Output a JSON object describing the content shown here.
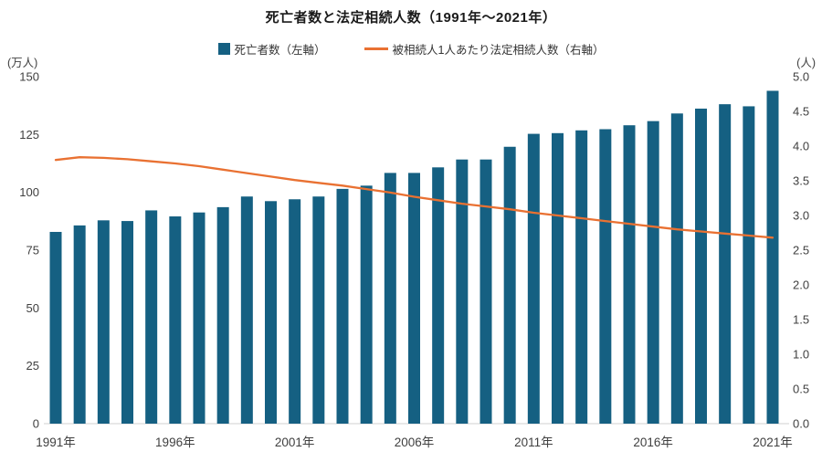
{
  "chart_data": {
    "type": "combo-bar-line",
    "title": "死亡者数と法定相続人数（1991年〜2021年）",
    "unit_left": "(万人)",
    "unit_right": "(人)",
    "years": [
      1991,
      1992,
      1993,
      1994,
      1995,
      1996,
      1997,
      1998,
      1999,
      2000,
      2001,
      2002,
      2003,
      2004,
      2005,
      2006,
      2007,
      2008,
      2009,
      2010,
      2011,
      2012,
      2013,
      2014,
      2015,
      2016,
      2017,
      2018,
      2019,
      2020,
      2021
    ],
    "series": [
      {
        "name": "死亡者数（左軸）",
        "type": "bar",
        "axis": "left",
        "color": "#156082",
        "values": [
          82.9,
          85.7,
          87.9,
          87.6,
          92.2,
          89.6,
          91.3,
          93.6,
          98.2,
          96.2,
          97.0,
          98.2,
          101.5,
          102.9,
          108.4,
          108.4,
          110.8,
          114.2,
          114.2,
          119.7,
          125.3,
          125.6,
          126.8,
          127.3,
          129.0,
          130.8,
          134.1,
          136.2,
          138.1,
          137.2,
          143.9
        ]
      },
      {
        "name": "被相続人1人あたり法定相続人数（右軸）",
        "type": "line",
        "axis": "right",
        "color": "#E97132",
        "values": [
          3.8,
          3.84,
          3.83,
          3.81,
          3.78,
          3.75,
          3.71,
          3.66,
          3.61,
          3.56,
          3.51,
          3.47,
          3.43,
          3.38,
          3.33,
          3.27,
          3.22,
          3.17,
          3.13,
          3.09,
          3.04,
          3.0,
          2.96,
          2.92,
          2.88,
          2.84,
          2.8,
          2.77,
          2.74,
          2.71,
          2.68
        ]
      }
    ],
    "left_axis": {
      "ticks": [
        "0",
        "25",
        "50",
        "75",
        "100",
        "125",
        "150"
      ],
      "min": 0,
      "max": 150
    },
    "right_axis": {
      "ticks": [
        "0.0",
        "0.5",
        "1.0",
        "1.5",
        "2.0",
        "2.5",
        "3.0",
        "3.5",
        "4.0",
        "4.5",
        "5.0"
      ],
      "min": 0,
      "max": 5
    },
    "x_tick_indices": [
      0,
      5,
      10,
      15,
      20,
      25,
      30
    ],
    "x_tick_labels": [
      "1991年",
      "1996年",
      "2001年",
      "2006年",
      "2011年",
      "2016年",
      "2021年"
    ],
    "axis_line_color": "#D9D9D9",
    "tick_text_color": "#404040",
    "grid": "off",
    "legend_position": "top-center"
  }
}
